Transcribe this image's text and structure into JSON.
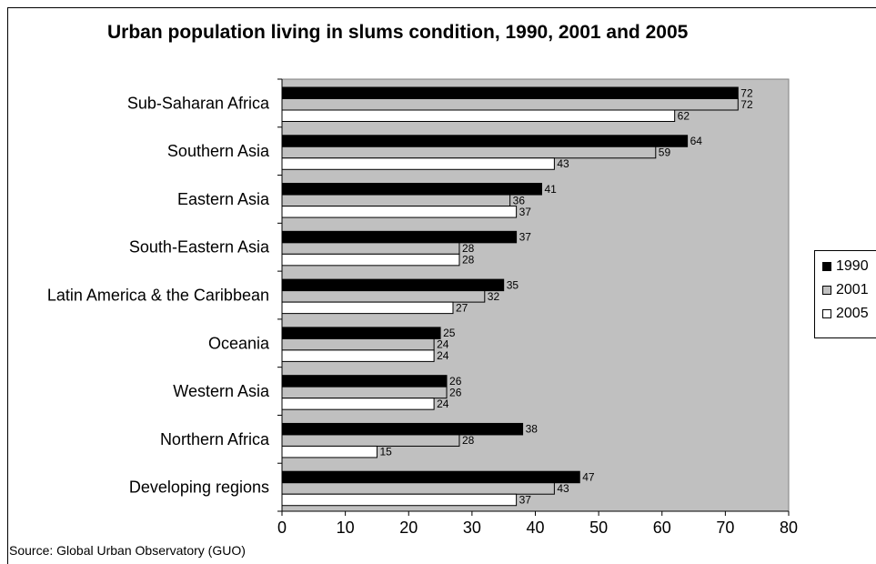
{
  "chart_data": {
    "type": "bar",
    "orientation": "horizontal",
    "title": "Urban population living in slums condition, 1990, 2001 and 2005",
    "categories": [
      "Sub-Saharan Africa",
      "Southern Asia",
      "Eastern Asia",
      "South-Eastern Asia",
      "Latin America & the Caribbean",
      "Oceania",
      "Western Asia",
      "Northern Africa",
      "Developing regions"
    ],
    "series": [
      {
        "name": "1990",
        "color": "#000000",
        "values": [
          72,
          64,
          41,
          37,
          35,
          25,
          26,
          38,
          47
        ]
      },
      {
        "name": "2001",
        "color": "#c0c0c0",
        "values": [
          72,
          59,
          36,
          28,
          32,
          24,
          26,
          28,
          43
        ]
      },
      {
        "name": "2005",
        "color": "#ffffff",
        "values": [
          62,
          43,
          37,
          28,
          27,
          24,
          24,
          15,
          37
        ]
      }
    ],
    "xlim": [
      0,
      80
    ],
    "xticks": [
      0,
      10,
      20,
      30,
      40,
      50,
      60,
      70,
      80
    ],
    "plot_background": "#c0c0c0",
    "grid": false,
    "legend_position": "right",
    "source": "Source: Global Urban Observatory (GUO)"
  }
}
